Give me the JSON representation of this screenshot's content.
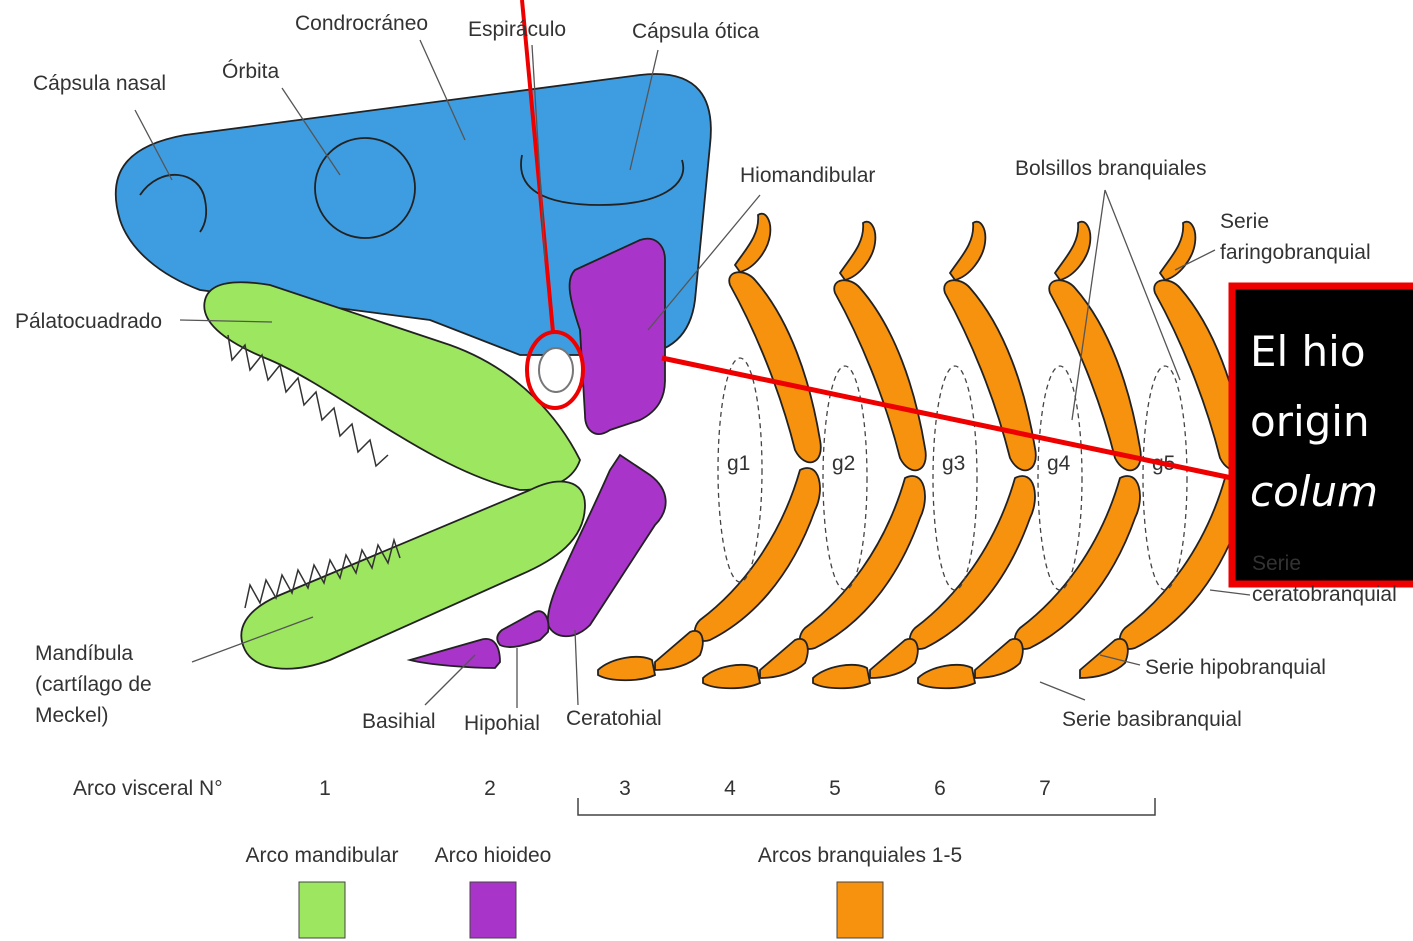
{
  "labels": [
    {
      "lines": [
        "Condrocráneo"
      ]
    },
    {
      "lines": [
        "Espiráculo"
      ]
    },
    {
      "lines": [
        "Cápsula ótica"
      ]
    },
    {
      "lines": [
        "Cápsula nasal"
      ]
    },
    {
      "lines": [
        "Órbita"
      ]
    },
    {
      "lines": [
        "Hiomandibular"
      ]
    },
    {
      "lines": [
        "Bolsillos branquiales"
      ]
    },
    {
      "lines": [
        "Serie",
        "faringobranquial"
      ]
    },
    {
      "lines": [
        "Pálatocuadrado"
      ]
    },
    {
      "lines": [
        "Serie",
        "ceratobranquial"
      ]
    },
    {
      "lines": [
        "Mandíbula",
        "(cartílago de",
        "Meckel)"
      ]
    },
    {
      "lines": [
        "Basihial"
      ]
    },
    {
      "lines": [
        "Hipohial"
      ]
    },
    {
      "lines": [
        "Ceratohial"
      ]
    },
    {
      "lines": [
        "Serie hipobranquial"
      ]
    },
    {
      "lines": [
        "Serie basibranquial"
      ]
    }
  ],
  "gills": [
    "g1",
    "g2",
    "g3",
    "g4",
    "g5"
  ],
  "arch_row": {
    "title": "Arco visceral N°",
    "numbers": [
      "1",
      "2",
      "3",
      "4",
      "5",
      "6",
      "7"
    ]
  },
  "legend": [
    {
      "label": "Arco mandibular",
      "color": "#9de65f"
    },
    {
      "label": "Arco hioideo",
      "color": "#a934c9"
    },
    {
      "label": "Arcos branquiales 1-5",
      "color": "#f7920f"
    }
  ],
  "callout": {
    "lines": [
      "El hio",
      "origin",
      "colum"
    ]
  }
}
